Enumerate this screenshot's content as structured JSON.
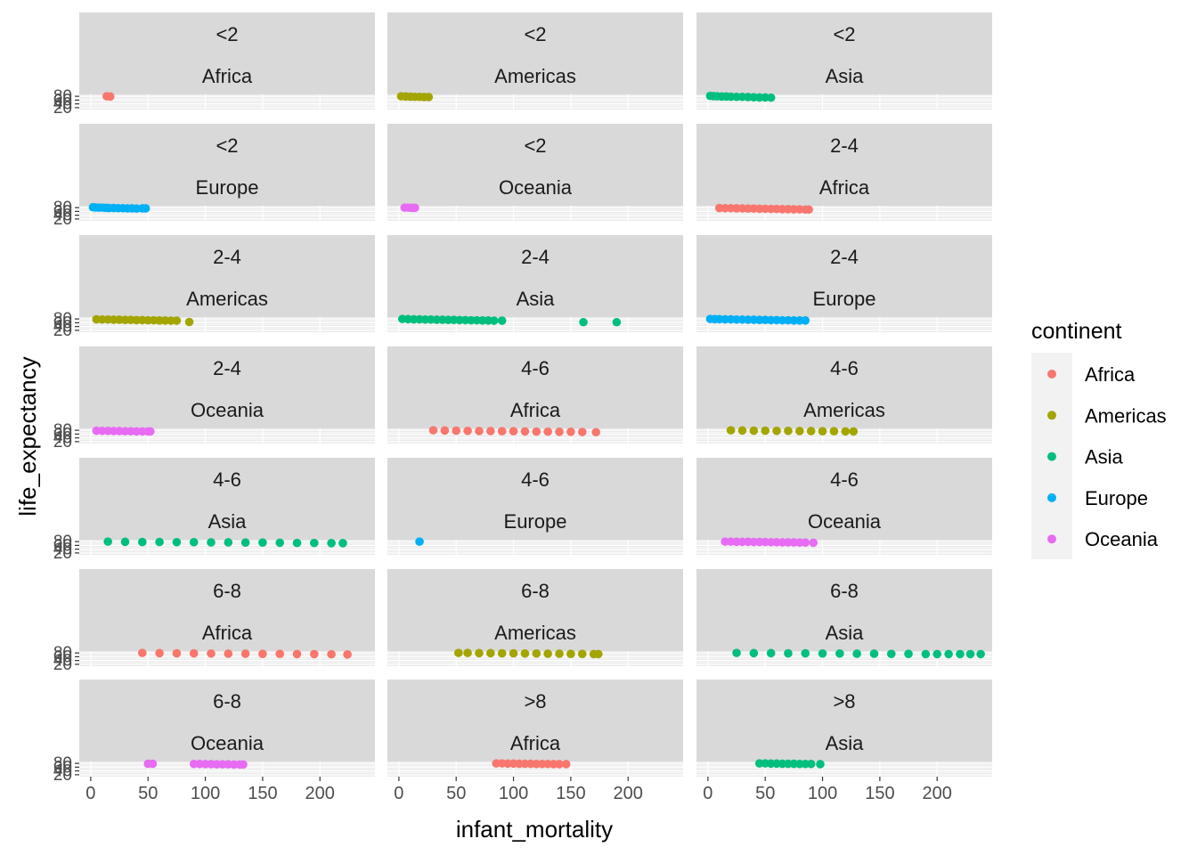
{
  "chart_data": {
    "type": "scatter",
    "facet_type": "facet_wrap",
    "facet_ncol": 3,
    "xlabel": "infant_mortality",
    "ylabel": "life_expectancy",
    "xlim": [
      -10,
      248
    ],
    "ylim": [
      10,
      90
    ],
    "x_ticks": [
      "0",
      "50",
      "100",
      "150",
      "200"
    ],
    "y_ticks": [
      "20",
      "40",
      "60",
      "80"
    ],
    "panel_background": "#EBEBEB",
    "strip_background": "#D9D9D9",
    "grid": true,
    "legend": {
      "title": "continent",
      "position": "right",
      "entries": [
        {
          "label": "Africa",
          "color": "#F8766D"
        },
        {
          "label": "Americas",
          "color": "#A3A500"
        },
        {
          "label": "Asia",
          "color": "#00BF7D"
        },
        {
          "label": "Europe",
          "color": "#00B0F6"
        },
        {
          "label": "Oceania",
          "color": "#E76BF3"
        }
      ]
    },
    "facets": [
      {
        "fertility": "<2",
        "continent": "Africa",
        "points": [
          [
            14,
            80
          ],
          [
            17,
            79
          ]
        ]
      },
      {
        "fertility": "<2",
        "continent": "Americas",
        "points": [
          [
            2,
            80
          ],
          [
            6,
            79
          ],
          [
            10,
            78
          ],
          [
            14,
            77
          ],
          [
            18,
            77
          ],
          [
            22,
            76
          ],
          [
            26,
            76
          ]
        ]
      },
      {
        "fertility": "<2",
        "continent": "Asia",
        "points": [
          [
            2,
            82
          ],
          [
            5,
            81
          ],
          [
            8,
            80
          ],
          [
            12,
            79
          ],
          [
            16,
            79
          ],
          [
            20,
            78
          ],
          [
            25,
            77
          ],
          [
            30,
            77
          ],
          [
            35,
            76
          ],
          [
            40,
            75
          ],
          [
            45,
            74
          ],
          [
            50,
            74
          ],
          [
            55,
            73
          ]
        ]
      },
      {
        "fertility": "<2",
        "continent": "Europe",
        "points": [
          [
            2,
            82
          ],
          [
            4,
            81
          ],
          [
            7,
            80
          ],
          [
            10,
            80
          ],
          [
            13,
            79
          ],
          [
            16,
            78
          ],
          [
            20,
            78
          ],
          [
            24,
            77
          ],
          [
            28,
            77
          ],
          [
            32,
            76
          ],
          [
            36,
            76
          ],
          [
            40,
            75
          ],
          [
            45,
            76
          ],
          [
            48,
            76
          ]
        ]
      },
      {
        "fertility": "<2",
        "continent": "Oceania",
        "points": [
          [
            5,
            80
          ],
          [
            8,
            80
          ],
          [
            11,
            79
          ],
          [
            14,
            79
          ]
        ]
      },
      {
        "fertility": "2-4",
        "continent": "Africa",
        "points": [
          [
            10,
            78
          ],
          [
            15,
            77
          ],
          [
            20,
            77
          ],
          [
            25,
            76
          ],
          [
            30,
            76
          ],
          [
            35,
            75
          ],
          [
            40,
            75
          ],
          [
            45,
            74
          ],
          [
            50,
            74
          ],
          [
            55,
            73
          ],
          [
            60,
            73
          ],
          [
            65,
            72
          ],
          [
            70,
            72
          ],
          [
            75,
            71
          ],
          [
            80,
            71
          ],
          [
            85,
            70
          ],
          [
            88,
            70
          ]
        ]
      },
      {
        "fertility": "2-4",
        "continent": "Americas",
        "points": [
          [
            5,
            78
          ],
          [
            10,
            77
          ],
          [
            15,
            77
          ],
          [
            20,
            76
          ],
          [
            25,
            76
          ],
          [
            30,
            75
          ],
          [
            35,
            75
          ],
          [
            40,
            74
          ],
          [
            45,
            74
          ],
          [
            50,
            73
          ],
          [
            55,
            73
          ],
          [
            60,
            72
          ],
          [
            65,
            72
          ],
          [
            70,
            71
          ],
          [
            75,
            71
          ],
          [
            86,
            64
          ]
        ]
      },
      {
        "fertility": "2-4",
        "continent": "Asia",
        "points": [
          [
            3,
            80
          ],
          [
            8,
            79
          ],
          [
            13,
            78
          ],
          [
            18,
            78
          ],
          [
            23,
            77
          ],
          [
            28,
            77
          ],
          [
            33,
            76
          ],
          [
            38,
            76
          ],
          [
            43,
            75
          ],
          [
            48,
            75
          ],
          [
            53,
            74
          ],
          [
            58,
            74
          ],
          [
            63,
            73
          ],
          [
            68,
            73
          ],
          [
            73,
            72
          ],
          [
            78,
            72
          ],
          [
            83,
            71
          ],
          [
            90,
            71
          ],
          [
            161,
            63
          ],
          [
            190,
            63
          ]
        ]
      },
      {
        "fertility": "2-4",
        "continent": "Europe",
        "points": [
          [
            2,
            80
          ],
          [
            6,
            79
          ],
          [
            10,
            79
          ],
          [
            15,
            78
          ],
          [
            20,
            78
          ],
          [
            25,
            77
          ],
          [
            30,
            77
          ],
          [
            35,
            76
          ],
          [
            40,
            76
          ],
          [
            45,
            75
          ],
          [
            50,
            75
          ],
          [
            55,
            74
          ],
          [
            60,
            74
          ],
          [
            65,
            73
          ],
          [
            70,
            73
          ],
          [
            75,
            72
          ],
          [
            80,
            72
          ],
          [
            85,
            72
          ]
        ]
      },
      {
        "fertility": "2-4",
        "continent": "Oceania",
        "points": [
          [
            5,
            78
          ],
          [
            10,
            77
          ],
          [
            15,
            77
          ],
          [
            20,
            76
          ],
          [
            25,
            76
          ],
          [
            30,
            75
          ],
          [
            35,
            75
          ],
          [
            40,
            74
          ],
          [
            45,
            74
          ],
          [
            50,
            74
          ],
          [
            52,
            74
          ]
        ]
      },
      {
        "fertility": "4-6",
        "continent": "Africa",
        "points": [
          [
            30,
            80
          ],
          [
            40,
            79
          ],
          [
            50,
            78
          ],
          [
            60,
            77
          ],
          [
            70,
            76
          ],
          [
            80,
            76
          ],
          [
            90,
            75
          ],
          [
            100,
            75
          ],
          [
            110,
            74
          ],
          [
            120,
            73
          ],
          [
            130,
            73
          ],
          [
            140,
            72
          ],
          [
            150,
            72
          ],
          [
            160,
            71
          ],
          [
            172,
            70
          ]
        ]
      },
      {
        "fertility": "4-6",
        "continent": "Americas",
        "points": [
          [
            20,
            80
          ],
          [
            30,
            79
          ],
          [
            40,
            78
          ],
          [
            50,
            78
          ],
          [
            60,
            77
          ],
          [
            70,
            77
          ],
          [
            80,
            76
          ],
          [
            90,
            76
          ],
          [
            100,
            75
          ],
          [
            110,
            75
          ],
          [
            120,
            74
          ],
          [
            127,
            74
          ]
        ]
      },
      {
        "fertility": "4-6",
        "continent": "Asia",
        "points": [
          [
            15,
            80
          ],
          [
            30,
            79
          ],
          [
            45,
            78
          ],
          [
            60,
            78
          ],
          [
            75,
            77
          ],
          [
            90,
            77
          ],
          [
            105,
            76
          ],
          [
            120,
            76
          ],
          [
            135,
            75
          ],
          [
            150,
            75
          ],
          [
            165,
            74
          ],
          [
            180,
            73
          ],
          [
            195,
            73
          ],
          [
            210,
            72
          ],
          [
            220,
            72
          ]
        ]
      },
      {
        "fertility": "4-6",
        "continent": "Europe",
        "points": [
          [
            18,
            80
          ]
        ]
      },
      {
        "fertility": "4-6",
        "continent": "Oceania",
        "points": [
          [
            15,
            80
          ],
          [
            20,
            80
          ],
          [
            25,
            79
          ],
          [
            30,
            79
          ],
          [
            35,
            79
          ],
          [
            40,
            78
          ],
          [
            45,
            78
          ],
          [
            50,
            78
          ],
          [
            55,
            77
          ],
          [
            60,
            77
          ],
          [
            65,
            76
          ],
          [
            70,
            76
          ],
          [
            75,
            76
          ],
          [
            80,
            75
          ],
          [
            85,
            75
          ],
          [
            92,
            74
          ]
        ]
      },
      {
        "fertility": "6-8",
        "continent": "Africa",
        "points": [
          [
            45,
            80
          ],
          [
            60,
            79
          ],
          [
            75,
            78
          ],
          [
            90,
            78
          ],
          [
            105,
            77
          ],
          [
            120,
            76
          ],
          [
            135,
            76
          ],
          [
            150,
            75
          ],
          [
            165,
            75
          ],
          [
            180,
            74
          ],
          [
            195,
            74
          ],
          [
            210,
            73
          ],
          [
            224,
            72
          ]
        ]
      },
      {
        "fertility": "6-8",
        "continent": "Americas",
        "points": [
          [
            52,
            80
          ],
          [
            60,
            80
          ],
          [
            70,
            79
          ],
          [
            80,
            79
          ],
          [
            90,
            78
          ],
          [
            100,
            78
          ],
          [
            110,
            77
          ],
          [
            120,
            77
          ],
          [
            130,
            76
          ],
          [
            140,
            76
          ],
          [
            150,
            75
          ],
          [
            160,
            75
          ],
          [
            170,
            74
          ],
          [
            174,
            74
          ]
        ]
      },
      {
        "fertility": "6-8",
        "continent": "Asia",
        "points": [
          [
            25,
            80
          ],
          [
            40,
            79
          ],
          [
            55,
            79
          ],
          [
            70,
            78
          ],
          [
            85,
            78
          ],
          [
            100,
            77
          ],
          [
            115,
            77
          ],
          [
            130,
            76
          ],
          [
            145,
            76
          ],
          [
            160,
            75
          ],
          [
            175,
            75
          ],
          [
            190,
            74
          ],
          [
            200,
            74
          ],
          [
            210,
            74
          ],
          [
            220,
            74
          ],
          [
            229,
            74
          ],
          [
            238,
            74
          ]
        ]
      },
      {
        "fertility": "6-8",
        "continent": "Oceania",
        "points": [
          [
            50,
            78
          ],
          [
            54,
            78
          ],
          [
            90,
            77
          ],
          [
            95,
            77
          ],
          [
            100,
            76
          ],
          [
            105,
            76
          ],
          [
            110,
            75
          ],
          [
            115,
            75
          ],
          [
            120,
            75
          ],
          [
            125,
            74
          ],
          [
            130,
            74
          ],
          [
            133,
            74
          ]
        ]
      },
      {
        "fertility": ">8",
        "continent": "Africa",
        "points": [
          [
            85,
            80
          ],
          [
            90,
            80
          ],
          [
            95,
            79
          ],
          [
            100,
            79
          ],
          [
            105,
            78
          ],
          [
            110,
            78
          ],
          [
            115,
            78
          ],
          [
            120,
            77
          ],
          [
            125,
            77
          ],
          [
            130,
            77
          ],
          [
            135,
            76
          ],
          [
            140,
            76
          ],
          [
            146,
            76
          ]
        ]
      },
      {
        "fertility": ">8",
        "continent": "Asia",
        "points": [
          [
            45,
            80
          ],
          [
            50,
            80
          ],
          [
            55,
            79
          ],
          [
            60,
            79
          ],
          [
            65,
            78
          ],
          [
            70,
            78
          ],
          [
            75,
            78
          ],
          [
            80,
            77
          ],
          [
            85,
            77
          ],
          [
            90,
            77
          ],
          [
            98,
            76
          ]
        ]
      }
    ]
  }
}
